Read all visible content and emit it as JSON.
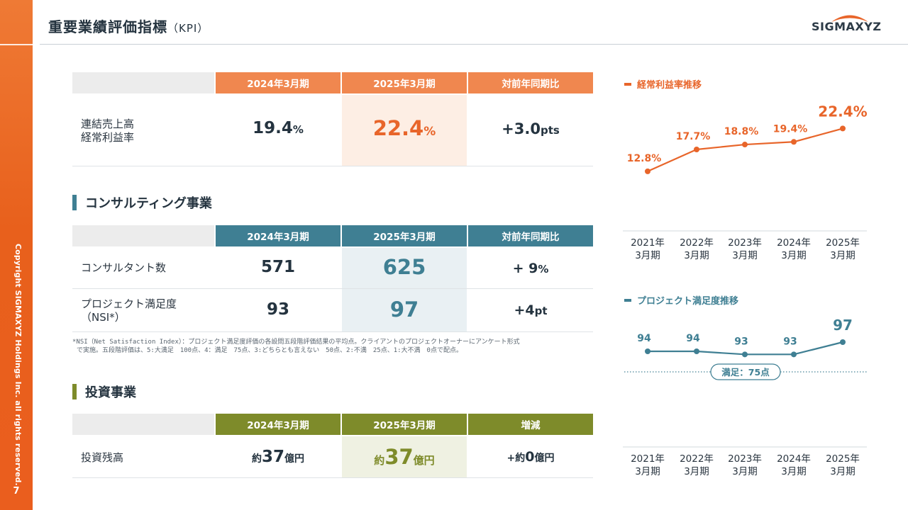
{
  "header": {
    "title": "重要業績評価指標",
    "title_suffix": "（KPI）",
    "logo_text": "SIGMAXYZ"
  },
  "sidebar": {
    "copyright": "Copyright SIGMAXYZ Holdings Inc. all rights reserved.",
    "page_number": "7"
  },
  "colors": {
    "orange": "#e8652a",
    "orange_header": "#f0874f",
    "orange_highlight": "#fdeee4",
    "teal": "#3f7f93",
    "teal_highlight": "#e9f0f3",
    "olive": "#7e8b2a",
    "olive_highlight": "#eff1e2"
  },
  "kpi_table": {
    "headers": [
      "2024年3月期",
      "2025年3月期",
      "対前年同期比"
    ],
    "row": {
      "label_line1": "連結売上高",
      "label_line2": "経常利益率",
      "v2024": "19.4",
      "v2024_unit": "%",
      "v2025": "22.4",
      "v2025_unit": "%",
      "diff": "+3.0",
      "diff_unit": "pts"
    }
  },
  "consulting": {
    "title": "コンサルティング事業",
    "headers": [
      "2024年3月期",
      "2025年3月期",
      "対前年同期比"
    ],
    "rows": [
      {
        "label": "コンサルタント数",
        "v2024": "571",
        "v2025": "625",
        "diff": "+ 9",
        "diff_unit": "%"
      },
      {
        "label_line1": "プロジェクト満足度",
        "label_line2": "（NSI*）",
        "v2024": "93",
        "v2025": "97",
        "diff": "+4",
        "diff_unit": "pt"
      }
    ],
    "footnote_line1": "*NSI（Net Satisfaction Index）：プロジェクト満足度評価の各設問五段階評価結果の平均点。クライアントのプロジェクトオーナーにアンケート形式",
    "footnote_line2": "で実施。五段階評価は、5:大満足　100点、4：満足　75点、3:どちらとも言えない　50点、2:不満　25点、1:大不満　0点で配点。"
  },
  "investment": {
    "title": "投資事業",
    "headers": [
      "2024年3月期",
      "2025年3月期",
      "増減"
    ],
    "row": {
      "label": "投資残高",
      "v2024_prefix": "約",
      "v2024": "37",
      "v2024_unit": "億円",
      "v2025_prefix": "約",
      "v2025": "37",
      "v2025_unit": "億円",
      "diff_prefix": "+約",
      "diff": "0",
      "diff_unit": "億円"
    }
  },
  "chart_data": [
    {
      "type": "line",
      "title": "経常利益率推移",
      "categories": [
        [
          "2021年",
          "3月期"
        ],
        [
          "2022年",
          "3月期"
        ],
        [
          "2023年",
          "3月期"
        ],
        [
          "2024年",
          "3月期"
        ],
        [
          "2025年",
          "3月期"
        ]
      ],
      "values": [
        12.8,
        17.7,
        18.8,
        19.4,
        22.4
      ],
      "labels": [
        "12.8%",
        "17.7%",
        "18.8%",
        "19.4%",
        "22.4%"
      ],
      "ylim": [
        5,
        25
      ],
      "color": "#e8652a"
    },
    {
      "type": "line",
      "title": "プロジェクト満足度推移",
      "categories": [
        [
          "2021年",
          "3月期"
        ],
        [
          "2022年",
          "3月期"
        ],
        [
          "2023年",
          "3月期"
        ],
        [
          "2024年",
          "3月期"
        ],
        [
          "2025年",
          "3月期"
        ]
      ],
      "values": [
        94,
        94,
        93,
        93,
        97
      ],
      "labels": [
        "94",
        "94",
        "93",
        "93",
        "97"
      ],
      "ylim": [
        88,
        100
      ],
      "reference_label": "満足：75点",
      "color": "#3f7f93"
    }
  ]
}
